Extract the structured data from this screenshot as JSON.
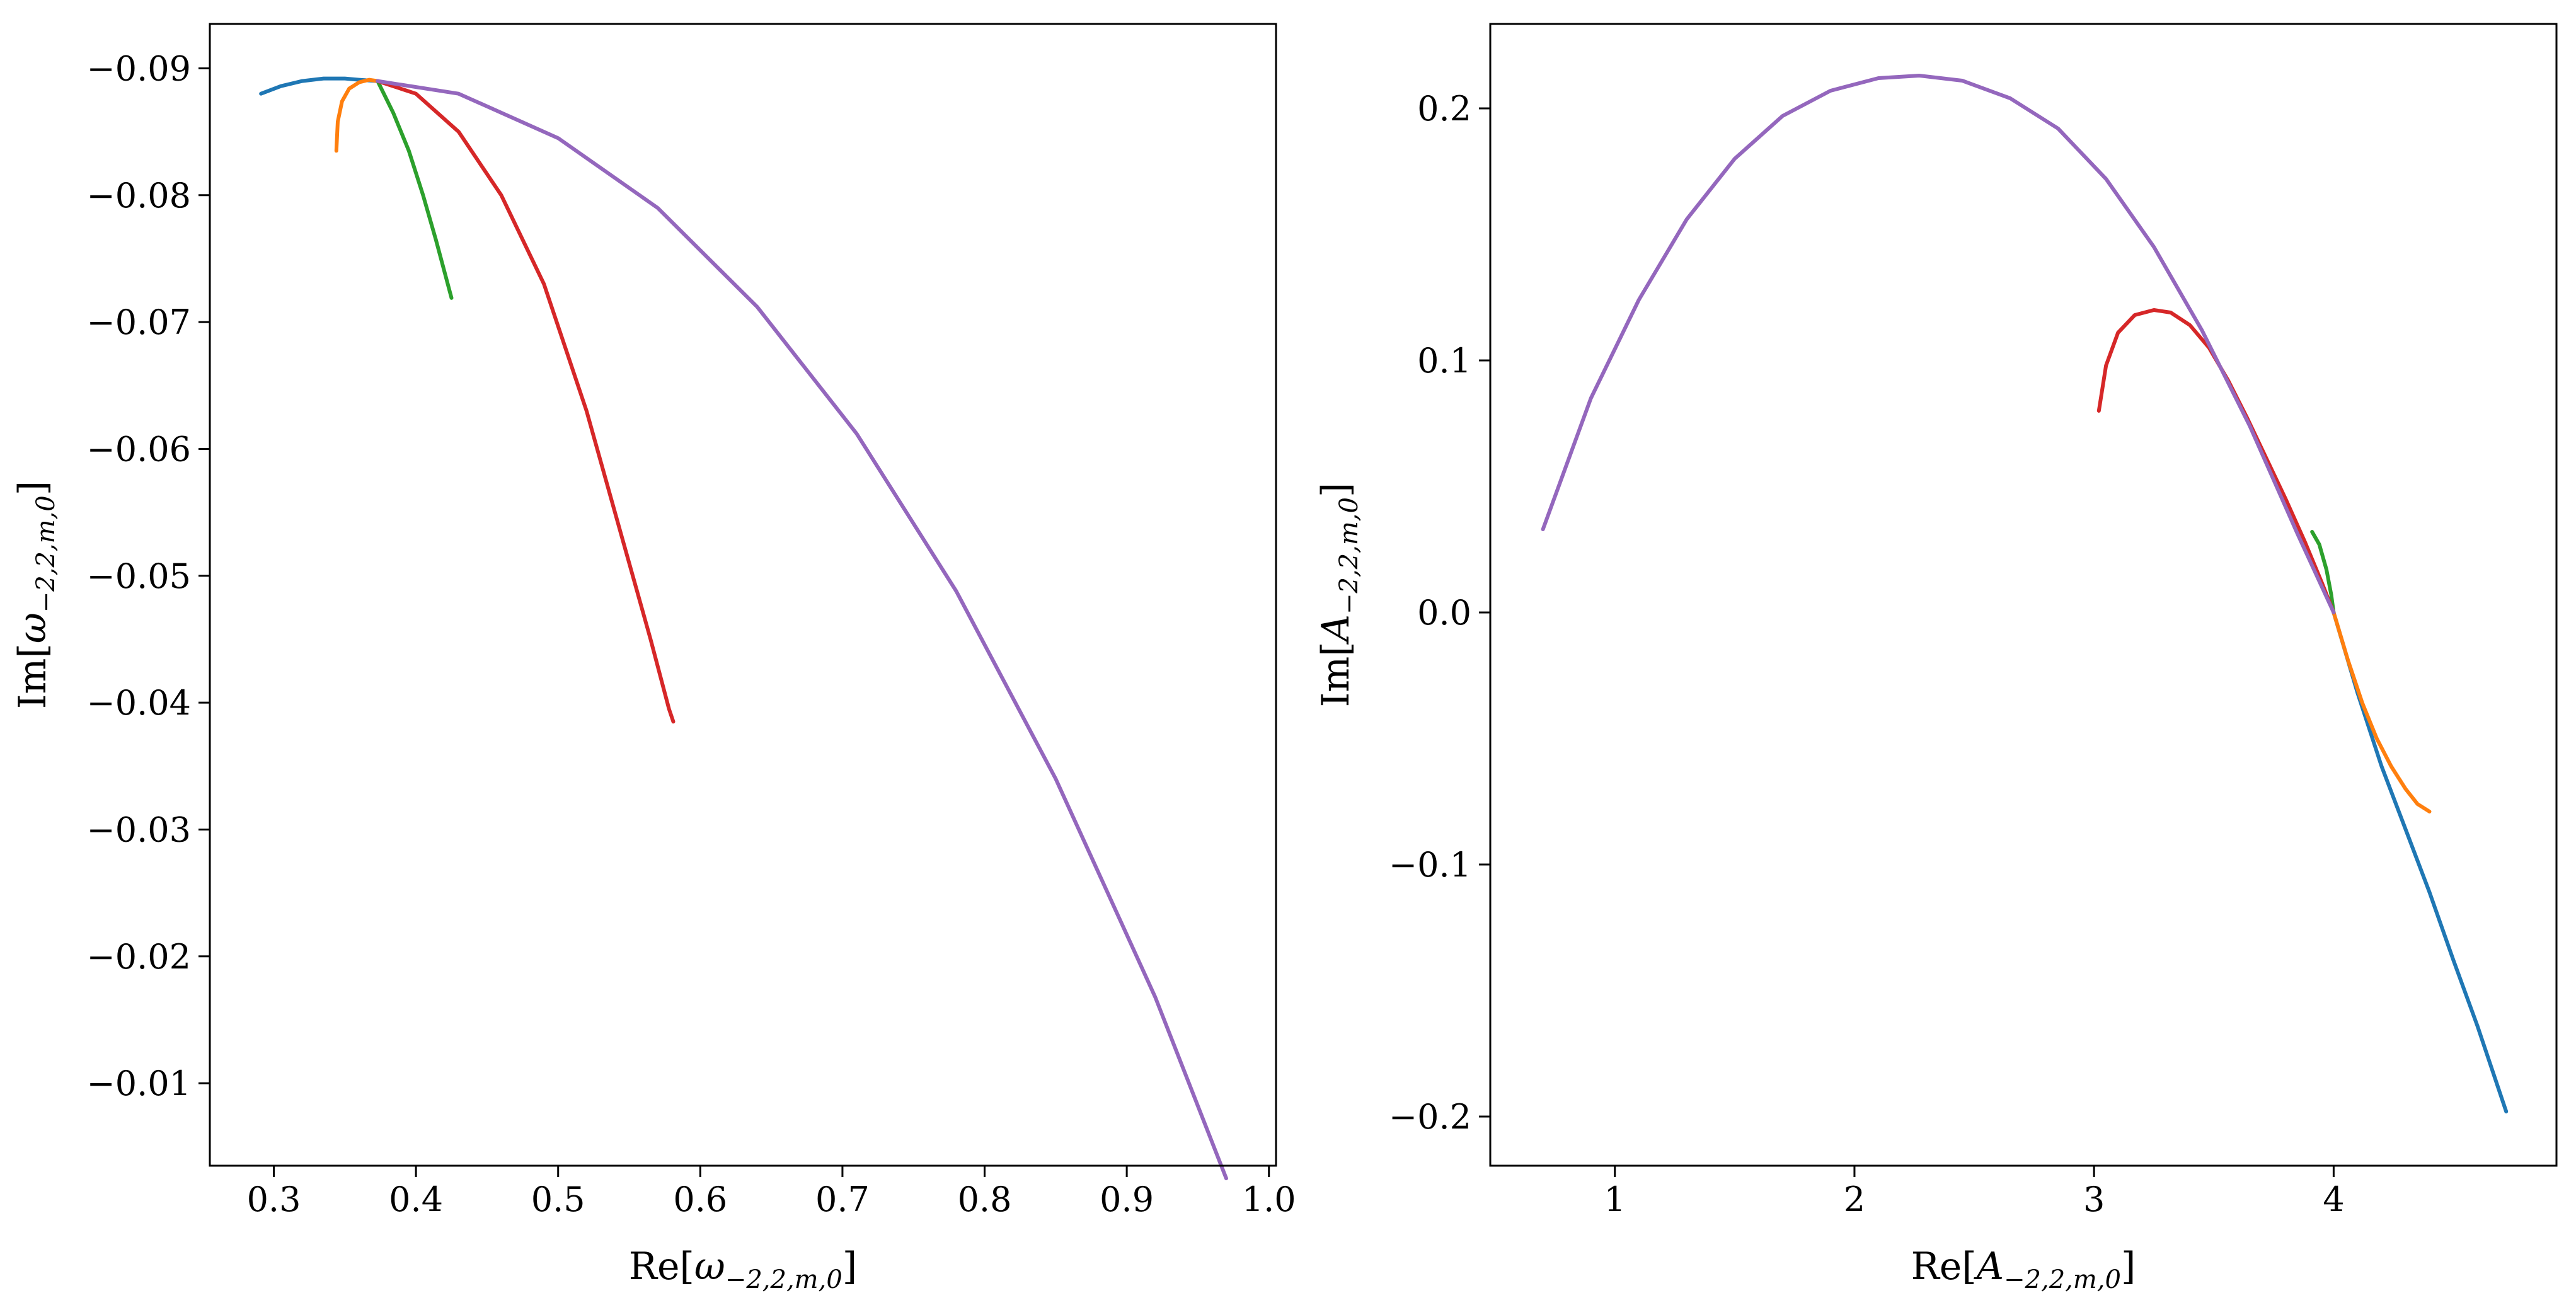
{
  "chart_data": [
    {
      "type": "line",
      "xlabel": {
        "main": "Re[",
        "symbol": "ω",
        "subscript": "−2,2,m,0",
        "close": "]"
      },
      "ylabel": {
        "main": "Im[",
        "symbol": "ω",
        "subscript": "−2,2,m,0",
        "close": "]"
      },
      "xlim": [
        0.255,
        1.005
      ],
      "ylim": [
        -0.0035,
        -0.0935
      ],
      "xticks": [
        0.3,
        0.4,
        0.5,
        0.6,
        0.7,
        0.8,
        0.9,
        1.0
      ],
      "xtick_labels": [
        "0.3",
        "0.4",
        "0.5",
        "0.6",
        "0.7",
        "0.8",
        "0.9",
        "1.0"
      ],
      "yticks": [
        -0.09,
        -0.08,
        -0.07,
        -0.06,
        -0.05,
        -0.04,
        -0.03,
        -0.02,
        -0.01
      ],
      "ytick_labels": [
        "−0.09",
        "−0.08",
        "−0.07",
        "−0.06",
        "−0.05",
        "−0.04",
        "−0.03",
        "−0.02",
        "−0.01"
      ],
      "grid": false,
      "series": [
        {
          "color": "#1f77b4",
          "x": [
            0.291,
            0.305,
            0.32,
            0.335,
            0.35,
            0.36,
            0.373
          ],
          "y": [
            -0.088,
            -0.0886,
            -0.089,
            -0.0892,
            -0.0892,
            -0.0891,
            -0.089
          ]
        },
        {
          "color": "#ff7f0e",
          "x": [
            0.344,
            0.345,
            0.348,
            0.353,
            0.36,
            0.367,
            0.373
          ],
          "y": [
            -0.0835,
            -0.0858,
            -0.0874,
            -0.0884,
            -0.0889,
            -0.0891,
            -0.089
          ]
        },
        {
          "color": "#2ca02c",
          "x": [
            0.373,
            0.384,
            0.395,
            0.405,
            0.414,
            0.42,
            0.425
          ],
          "y": [
            -0.089,
            -0.0865,
            -0.0835,
            -0.08,
            -0.0765,
            -0.074,
            -0.0719
          ]
        },
        {
          "color": "#d62728",
          "x": [
            0.373,
            0.4,
            0.43,
            0.46,
            0.49,
            0.52,
            0.545,
            0.565,
            0.578,
            0.581
          ],
          "y": [
            -0.089,
            -0.088,
            -0.085,
            -0.08,
            -0.073,
            -0.063,
            -0.053,
            -0.045,
            -0.0395,
            -0.0385
          ]
        },
        {
          "color": "#9467bd",
          "x": [
            0.373,
            0.43,
            0.5,
            0.57,
            0.64,
            0.71,
            0.78,
            0.85,
            0.92,
            0.97
          ],
          "y": [
            -0.089,
            -0.088,
            -0.0845,
            -0.079,
            -0.0712,
            -0.0612,
            -0.0488,
            -0.034,
            -0.0168,
            -0.0025
          ]
        }
      ]
    },
    {
      "type": "line",
      "xlabel": {
        "main": "Re[",
        "symbol": "A",
        "subscript": "−2,2,m,0",
        "close": "]"
      },
      "ylabel": {
        "main": "Im[",
        "symbol": "A",
        "subscript": "−2,2,m,0",
        "close": "]"
      },
      "xlim": [
        0.48,
        4.93
      ],
      "ylim": [
        -0.2195,
        0.2335
      ],
      "xticks": [
        1,
        2,
        3,
        4
      ],
      "xtick_labels": [
        "1",
        "2",
        "3",
        "4"
      ],
      "yticks": [
        -0.2,
        -0.1,
        0.0,
        0.1,
        0.2
      ],
      "ytick_labels": [
        "−0.2",
        "−0.1",
        "0.0",
        "0.1",
        "0.2"
      ],
      "grid": false,
      "series": [
        {
          "color": "#1f77b4",
          "x": [
            4.0,
            4.1,
            4.2,
            4.3,
            4.4,
            4.5,
            4.6,
            4.72
          ],
          "y": [
            0.0,
            -0.032,
            -0.061,
            -0.086,
            -0.111,
            -0.138,
            -0.164,
            -0.198
          ]
        },
        {
          "color": "#ff7f0e",
          "x": [
            4.0,
            4.06,
            4.12,
            4.18,
            4.24,
            4.3,
            4.35,
            4.4
          ],
          "y": [
            0.0,
            -0.019,
            -0.036,
            -0.05,
            -0.061,
            -0.07,
            -0.076,
            -0.079
          ]
        },
        {
          "color": "#2ca02c",
          "x": [
            3.91,
            3.94,
            3.97,
            3.99,
            4.0
          ],
          "y": [
            0.032,
            0.027,
            0.017,
            0.007,
            0.0
          ]
        },
        {
          "color": "#d62728",
          "x": [
            3.02,
            3.05,
            3.1,
            3.17,
            3.25,
            3.32,
            3.4,
            3.48,
            3.56,
            3.64,
            3.72,
            3.8,
            3.88,
            3.95,
            4.0
          ],
          "y": [
            0.08,
            0.098,
            0.111,
            0.118,
            0.12,
            0.119,
            0.114,
            0.105,
            0.092,
            0.077,
            0.061,
            0.045,
            0.028,
            0.012,
            0.0
          ]
        },
        {
          "color": "#9467bd",
          "x": [
            0.7,
            0.9,
            1.1,
            1.3,
            1.5,
            1.7,
            1.9,
            2.1,
            2.27,
            2.45,
            2.65,
            2.85,
            3.05,
            3.25,
            3.45,
            3.65,
            3.85,
            4.0
          ],
          "y": [
            0.033,
            0.085,
            0.124,
            0.156,
            0.18,
            0.197,
            0.207,
            0.212,
            0.213,
            0.211,
            0.204,
            0.192,
            0.172,
            0.145,
            0.112,
            0.074,
            0.031,
            0.0
          ]
        }
      ]
    }
  ]
}
